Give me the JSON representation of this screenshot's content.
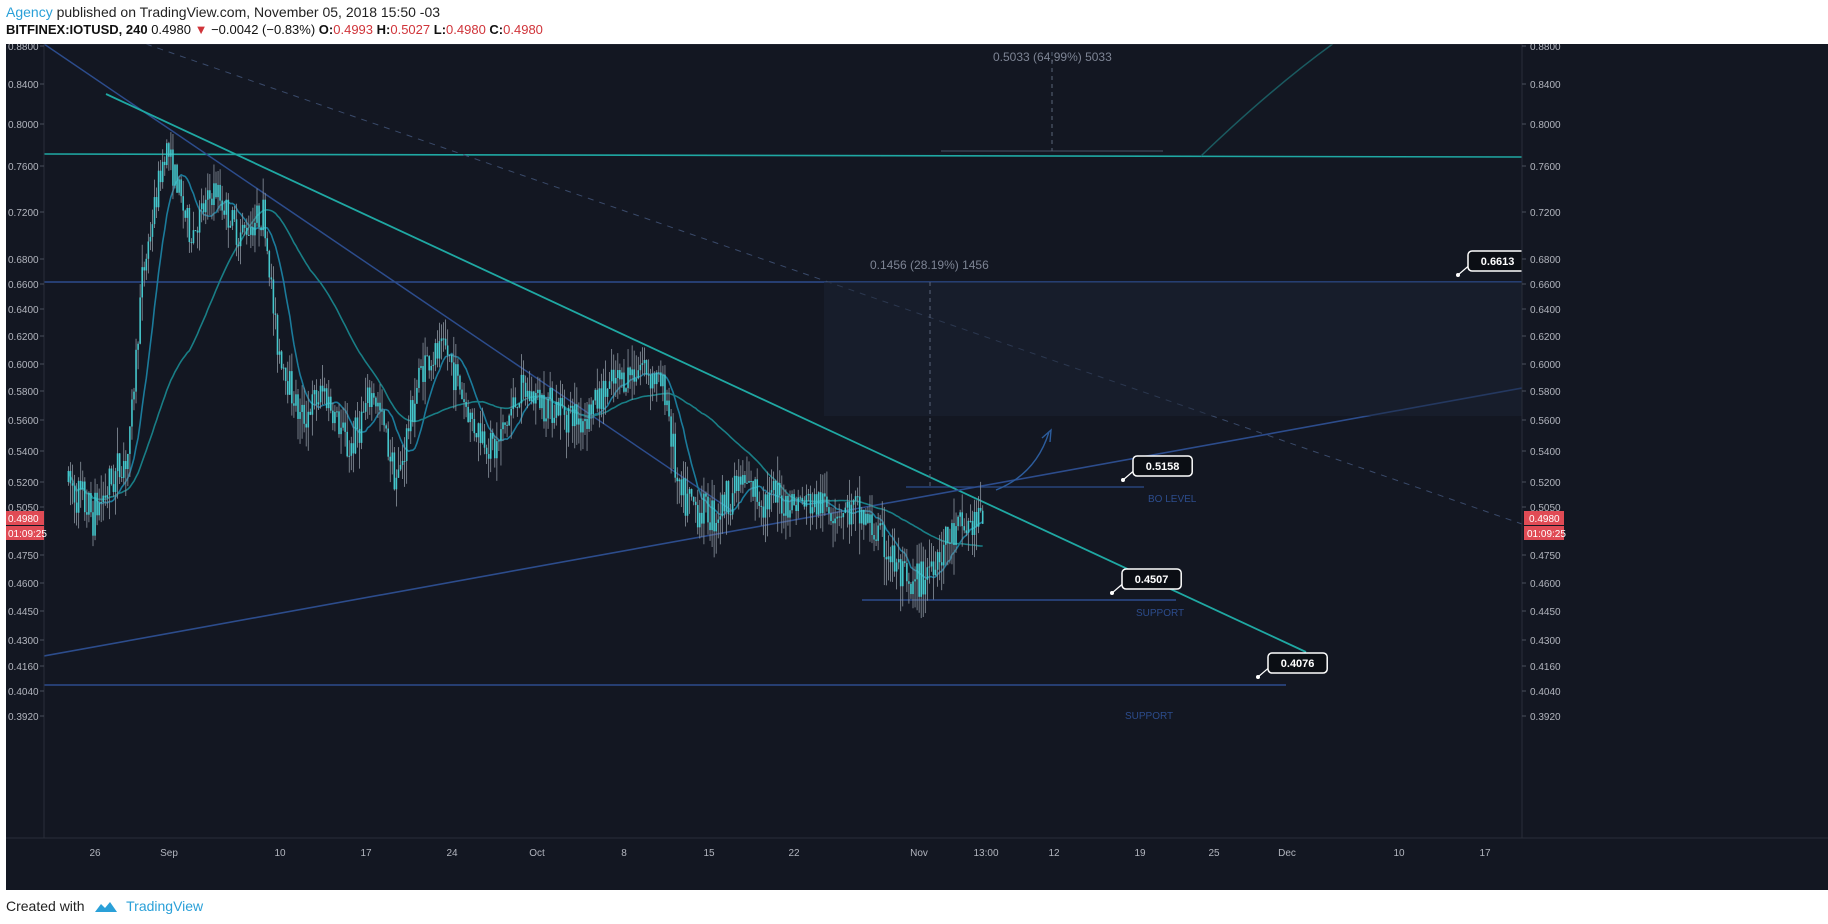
{
  "header": {
    "author": "Agency",
    "published": "published on TradingView.com, November 05, 2018 15:50 -03",
    "symbol": "BITFINEX:IOTUSD, 240",
    "last": "0.4980",
    "change_arrow": "▼",
    "change": "−0.0042 (−0.83%)",
    "o_label": "O:",
    "o_val": "0.4993",
    "h_label": "H:",
    "h_val": "0.5027",
    "l_label": "L:",
    "l_val": "0.4980",
    "c_label": "C:",
    "c_val": "0.4980"
  },
  "footer": {
    "created": "Created with",
    "brand": "TradingView"
  },
  "colors": {
    "background": "#131722",
    "candle": "#45c7cc",
    "trend_teal": "#1fa8a3",
    "trend_blue": "#2c4c8c",
    "ma_short": "#1b7b9b",
    "ma_long": "#197e86",
    "price_tag": "#e04b55",
    "axis_text": "#b2b5be"
  },
  "chart_data": {
    "type": "candlestick",
    "symbol": "IOTUSD",
    "exchange": "BITFINEX",
    "interval": "240",
    "y_ticks": [
      "0.8800",
      "0.8400",
      "0.8000",
      "0.7600",
      "0.7200",
      "0.6800",
      "0.6600",
      "0.6400",
      "0.6200",
      "0.6000",
      "0.5800",
      "0.5600",
      "0.5400",
      "0.5200",
      "0.5050",
      "0.4750",
      "0.4600",
      "0.4450",
      "0.4300",
      "0.4160",
      "0.4040",
      "0.3920"
    ],
    "x_ticks": [
      "26",
      "Sep",
      "10",
      "17",
      "24",
      "Oct",
      "8",
      "15",
      "22",
      "Nov",
      "13:00",
      "12",
      "19",
      "25",
      "Dec",
      "10",
      "17"
    ],
    "price_tag_left": {
      "price": "0.4980",
      "countdown": "01:09:25"
    },
    "price_tag_right": {
      "price": "0.4980",
      "countdown": "01:09:25"
    },
    "series_outline": [
      [
        "2018-08-22",
        0.52
      ],
      [
        "2018-08-24",
        0.5
      ],
      [
        "2018-08-27",
        0.54
      ],
      [
        "2018-08-28",
        0.66
      ],
      [
        "2018-08-30",
        0.78
      ],
      [
        "2018-09-01",
        0.7
      ],
      [
        "2018-09-03",
        0.74
      ],
      [
        "2018-09-05",
        0.7
      ],
      [
        "2018-09-07",
        0.72
      ],
      [
        "2018-09-08",
        0.62
      ],
      [
        "2018-09-10",
        0.56
      ],
      [
        "2018-09-12",
        0.58
      ],
      [
        "2018-09-14",
        0.54
      ],
      [
        "2018-09-16",
        0.58
      ],
      [
        "2018-09-18",
        0.52
      ],
      [
        "2018-09-20",
        0.6
      ],
      [
        "2018-09-22",
        0.61
      ],
      [
        "2018-09-24",
        0.56
      ],
      [
        "2018-09-26",
        0.54
      ],
      [
        "2018-09-28",
        0.58
      ],
      [
        "2018-10-01",
        0.57
      ],
      [
        "2018-10-03",
        0.56
      ],
      [
        "2018-10-05",
        0.58
      ],
      [
        "2018-10-08",
        0.6
      ],
      [
        "2018-10-10",
        0.58
      ],
      [
        "2018-10-11",
        0.51
      ],
      [
        "2018-10-14",
        0.5
      ],
      [
        "2018-10-16",
        0.52
      ],
      [
        "2018-10-18",
        0.51
      ],
      [
        "2018-10-20",
        0.508
      ],
      [
        "2018-10-23",
        0.506
      ],
      [
        "2018-10-26",
        0.5
      ],
      [
        "2018-10-28",
        0.48
      ],
      [
        "2018-10-30",
        0.452
      ],
      [
        "2018-11-01",
        0.475
      ],
      [
        "2018-11-03",
        0.49
      ],
      [
        "2018-11-05",
        0.498
      ]
    ],
    "annotations": [
      {
        "type": "price_label",
        "text": "0.6613"
      },
      {
        "type": "price_label",
        "text": "0.5158"
      },
      {
        "type": "price_label",
        "text": "0.4507"
      },
      {
        "type": "price_label",
        "text": "0.4076"
      },
      {
        "type": "text",
        "text": "BO LEVEL"
      },
      {
        "type": "text",
        "text": "SUPPORT"
      },
      {
        "type": "text",
        "text": "SUPPORT"
      },
      {
        "type": "measure",
        "text": "0.1456 (28.19%) 1456"
      },
      {
        "type": "measure",
        "text": "0.5033 (64,99%) 5033"
      }
    ]
  }
}
